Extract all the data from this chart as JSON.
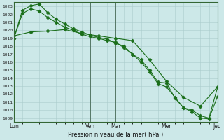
{
  "xlabel": "Pression niveau de la mer( hPa )",
  "background_color": "#cce8e8",
  "grid_color": "#aacccc",
  "grid_color_major": "#88bbbb",
  "line_color": "#1a6e1a",
  "ylim": [
    1008.5,
    1023.5
  ],
  "yticks": [
    1009,
    1010,
    1011,
    1012,
    1013,
    1014,
    1015,
    1016,
    1017,
    1018,
    1019,
    1020,
    1021,
    1022,
    1023
  ],
  "day_labels": [
    "Lun",
    "Ven",
    "Mar",
    "Mer",
    "Jeu"
  ],
  "day_positions": [
    0,
    9,
    12,
    18,
    24
  ],
  "xlim": [
    0,
    24
  ],
  "series": [
    {
      "x": [
        0,
        1,
        2,
        3,
        4,
        5,
        6,
        7,
        8,
        9,
        10,
        11,
        12,
        13,
        14,
        15,
        16,
        17,
        18,
        19,
        20,
        21,
        22,
        23,
        24
      ],
      "y": [
        1019.0,
        1022.1,
        1022.7,
        1022.4,
        1021.6,
        1021.0,
        1020.4,
        1020.0,
        1019.5,
        1019.2,
        1019.0,
        1018.7,
        1018.5,
        1017.8,
        1017.0,
        1016.3,
        1015.0,
        1013.5,
        1013.4,
        1011.5,
        1010.3,
        1010.0,
        1009.3,
        1009.0,
        1012.8
      ]
    },
    {
      "x": [
        0,
        1,
        2,
        3,
        4,
        5,
        6,
        7,
        8,
        9,
        10,
        11,
        12,
        13,
        14,
        15,
        16,
        17,
        18,
        19,
        20,
        21,
        22,
        23,
        24
      ],
      "y": [
        1019.0,
        1022.5,
        1023.1,
        1023.3,
        1022.2,
        1021.4,
        1020.8,
        1020.2,
        1019.8,
        1019.4,
        1019.1,
        1018.9,
        1018.4,
        1018.0,
        1017.0,
        1016.0,
        1014.8,
        1013.3,
        1012.9,
        1011.6,
        1010.3,
        1009.8,
        1009.0,
        1008.9,
        1011.7
      ]
    },
    {
      "x": [
        0,
        2,
        4,
        6,
        8,
        10,
        12,
        14,
        16,
        18,
        20,
        22,
        24
      ],
      "y": [
        1019.3,
        1019.8,
        1019.9,
        1020.1,
        1019.6,
        1019.3,
        1019.0,
        1018.7,
        1016.3,
        1013.6,
        1011.6,
        1010.5,
        1012.9
      ]
    }
  ]
}
